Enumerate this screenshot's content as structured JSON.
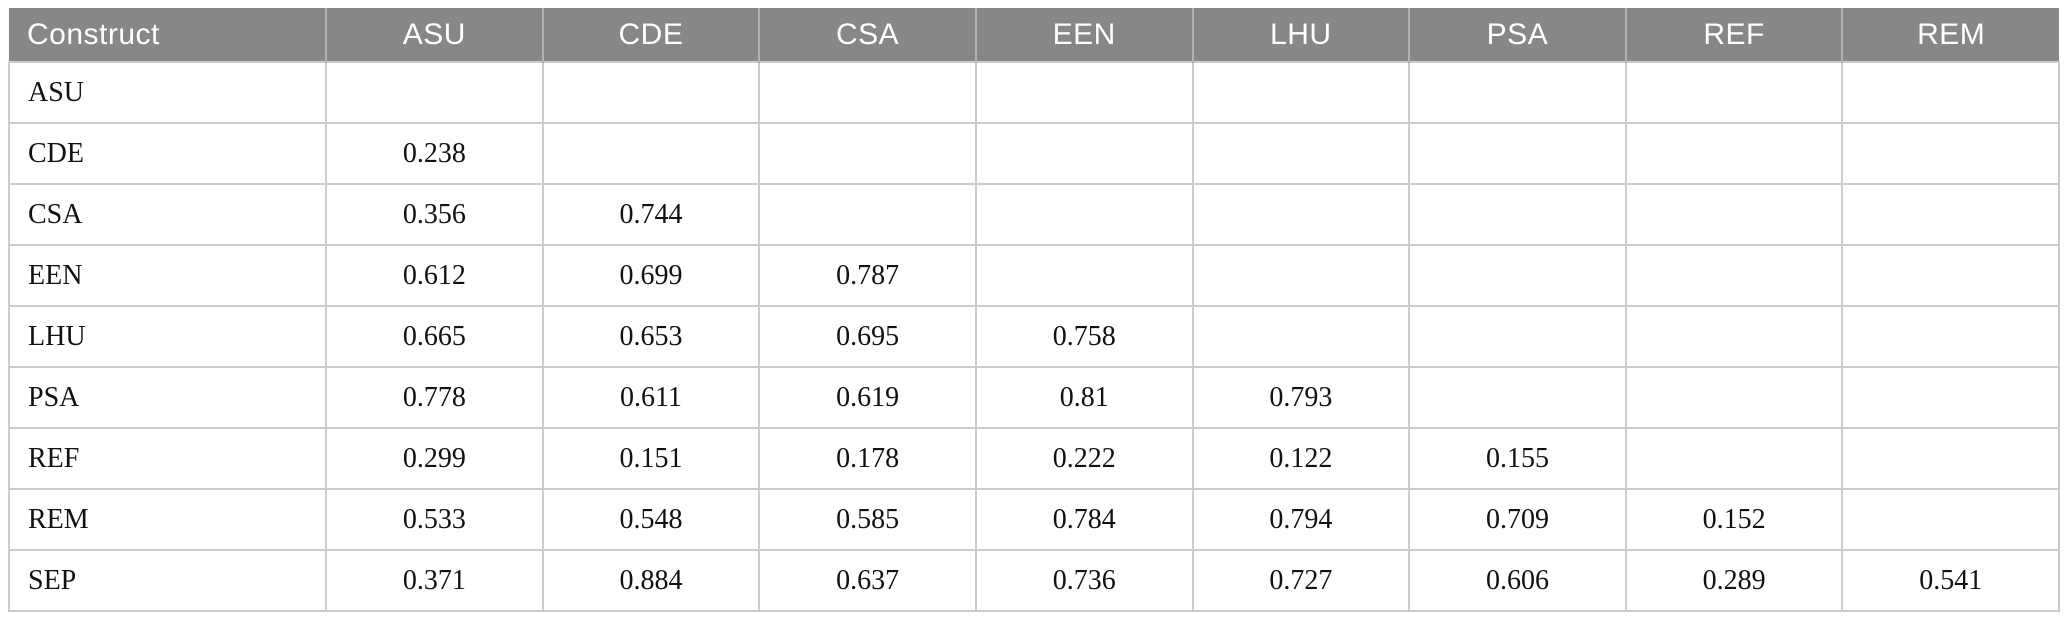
{
  "table": {
    "colors": {
      "header_bg": "#878787",
      "header_text": "#ffffff",
      "header_divider": "#b2b2b2",
      "grid_line": "#cccccc",
      "body_text": "#111111",
      "page_bg": "#ffffff"
    },
    "header": {
      "construct_label": "Construct",
      "columns": [
        "ASU",
        "CDE",
        "CSA",
        "EEN",
        "LHU",
        "PSA",
        "REF",
        "REM"
      ]
    },
    "rows": [
      {
        "label": "ASU",
        "values": [
          "",
          "",
          "",
          "",
          "",
          "",
          "",
          ""
        ]
      },
      {
        "label": "CDE",
        "values": [
          "0.238",
          "",
          "",
          "",
          "",
          "",
          "",
          ""
        ]
      },
      {
        "label": "CSA",
        "values": [
          "0.356",
          "0.744",
          "",
          "",
          "",
          "",
          "",
          ""
        ]
      },
      {
        "label": "EEN",
        "values": [
          "0.612",
          "0.699",
          "0.787",
          "",
          "",
          "",
          "",
          ""
        ]
      },
      {
        "label": "LHU",
        "values": [
          "0.665",
          "0.653",
          "0.695",
          "0.758",
          "",
          "",
          "",
          ""
        ]
      },
      {
        "label": "PSA",
        "values": [
          "0.778",
          "0.611",
          "0.619",
          "0.81",
          "0.793",
          "",
          "",
          ""
        ]
      },
      {
        "label": "REF",
        "values": [
          "0.299",
          "0.151",
          "0.178",
          "0.222",
          "0.122",
          "0.155",
          "",
          ""
        ]
      },
      {
        "label": "REM",
        "values": [
          "0.533",
          "0.548",
          "0.585",
          "0.784",
          "0.794",
          "0.709",
          "0.152",
          ""
        ]
      },
      {
        "label": "SEP",
        "values": [
          "0.371",
          "0.884",
          "0.637",
          "0.736",
          "0.727",
          "0.606",
          "0.289",
          "0.541"
        ]
      }
    ]
  }
}
